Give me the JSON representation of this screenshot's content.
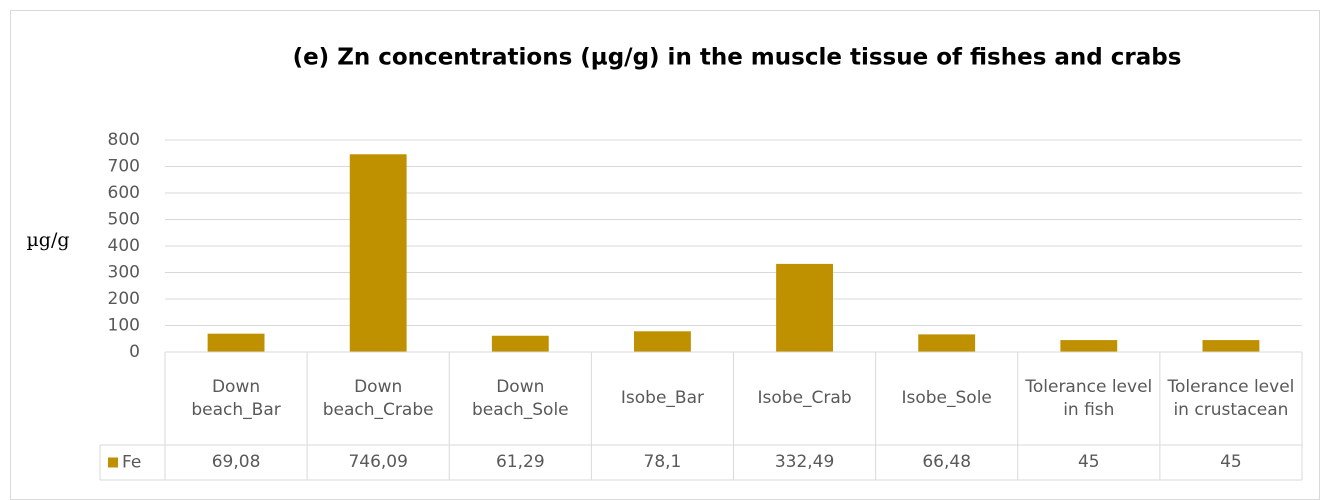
{
  "chart_data": {
    "type": "bar",
    "title": "(e) Zn concentrations (µg/g) in the muscle tissue of fishes and crabs",
    "y_label": "µg/g",
    "categories": [
      "Down beach_Bar",
      "Down beach_Crabe",
      "Down beach_Sole",
      "Isobe_Bar",
      "Isobe_Crab",
      "Isobe_Sole",
      "Tolerance level in fish",
      "Tolerance level in crustacean"
    ],
    "series": [
      {
        "name": "Fe",
        "color": "#bf9000",
        "values": [
          69.08,
          746.09,
          61.29,
          78.1,
          332.49,
          66.48,
          45,
          45
        ],
        "value_labels": [
          "69,08",
          "746,09",
          "61,29",
          "78,1",
          "332,49",
          "66,48",
          "45",
          "45"
        ]
      }
    ],
    "ylim": [
      0,
      800
    ],
    "yticks": [
      0,
      100,
      200,
      300,
      400,
      500,
      600,
      700,
      800
    ],
    "grid": true
  }
}
